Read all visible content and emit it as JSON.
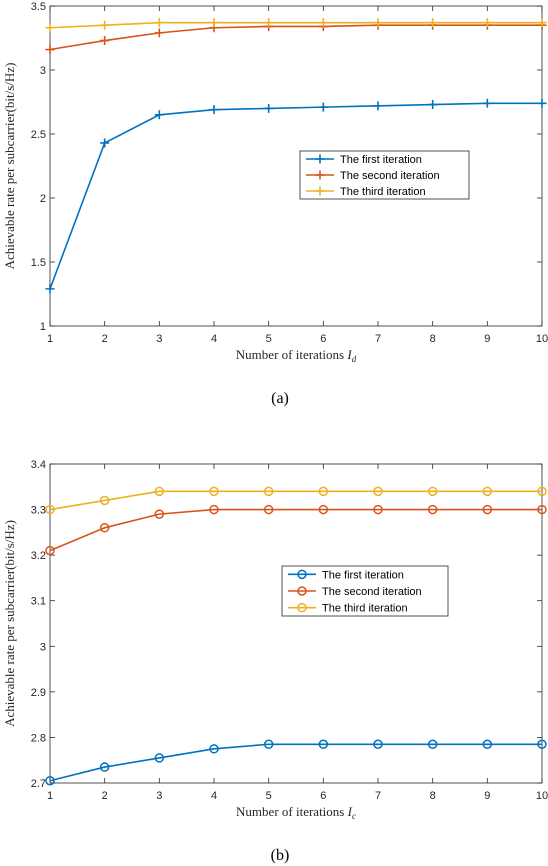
{
  "chart_data": [
    {
      "type": "line",
      "caption": "(a)",
      "x": [
        1,
        2,
        3,
        4,
        5,
        6,
        7,
        8,
        9,
        10
      ],
      "xlabel_text": "Number of iterations ",
      "xlabel_var": "I",
      "xlabel_sub": "d",
      "ylabel": "Achievable rate per subcarrier(bit/s/Hz)",
      "xlim": [
        1,
        10
      ],
      "ylim": [
        1,
        3.5
      ],
      "xticks": [
        "1",
        "2",
        "3",
        "4",
        "5",
        "6",
        "7",
        "8",
        "9",
        "10"
      ],
      "yticks": [
        "1",
        "1.5",
        "2",
        "2.5",
        "3",
        "3.5"
      ],
      "marker": "plus",
      "legend_position": "center-right",
      "series": [
        {
          "name": "The first iteration",
          "color": "#0072BD",
          "values": [
            1.29,
            2.43,
            2.65,
            2.69,
            2.7,
            2.71,
            2.72,
            2.73,
            2.74,
            2.74
          ]
        },
        {
          "name": "The second iteration",
          "color": "#D95319",
          "values": [
            3.16,
            3.23,
            3.29,
            3.33,
            3.34,
            3.34,
            3.35,
            3.35,
            3.35,
            3.35
          ]
        },
        {
          "name": "The third iteration",
          "color": "#EDB120",
          "values": [
            3.33,
            3.35,
            3.37,
            3.37,
            3.37,
            3.37,
            3.37,
            3.37,
            3.37,
            3.37
          ]
        }
      ]
    },
    {
      "type": "line",
      "caption": "(b)",
      "x": [
        1,
        2,
        3,
        4,
        5,
        6,
        7,
        8,
        9,
        10
      ],
      "xlabel_text": "Number of iterations ",
      "xlabel_var": "I",
      "xlabel_sub": "c",
      "ylabel": "Achievable rate per subcarrier(bit/s/Hz)",
      "xlim": [
        1,
        10
      ],
      "ylim": [
        2.7,
        3.4
      ],
      "xticks": [
        "1",
        "2",
        "3",
        "4",
        "5",
        "6",
        "7",
        "8",
        "9",
        "10"
      ],
      "yticks": [
        "2.7",
        "2.8",
        "2.9",
        "3",
        "3.1",
        "3.2",
        "3.3",
        "3.4"
      ],
      "marker": "circle",
      "legend_position": "center-right",
      "series": [
        {
          "name": "The first iteration",
          "color": "#0072BD",
          "values": [
            2.705,
            2.735,
            2.755,
            2.775,
            2.785,
            2.785,
            2.785,
            2.785,
            2.785,
            2.785
          ]
        },
        {
          "name": "The second iteration",
          "color": "#D95319",
          "values": [
            3.21,
            3.26,
            3.29,
            3.3,
            3.3,
            3.3,
            3.3,
            3.3,
            3.3,
            3.3
          ]
        },
        {
          "name": "The third iteration",
          "color": "#EDB120",
          "values": [
            3.3,
            3.32,
            3.34,
            3.34,
            3.34,
            3.34,
            3.34,
            3.34,
            3.34,
            3.34
          ]
        }
      ]
    }
  ]
}
